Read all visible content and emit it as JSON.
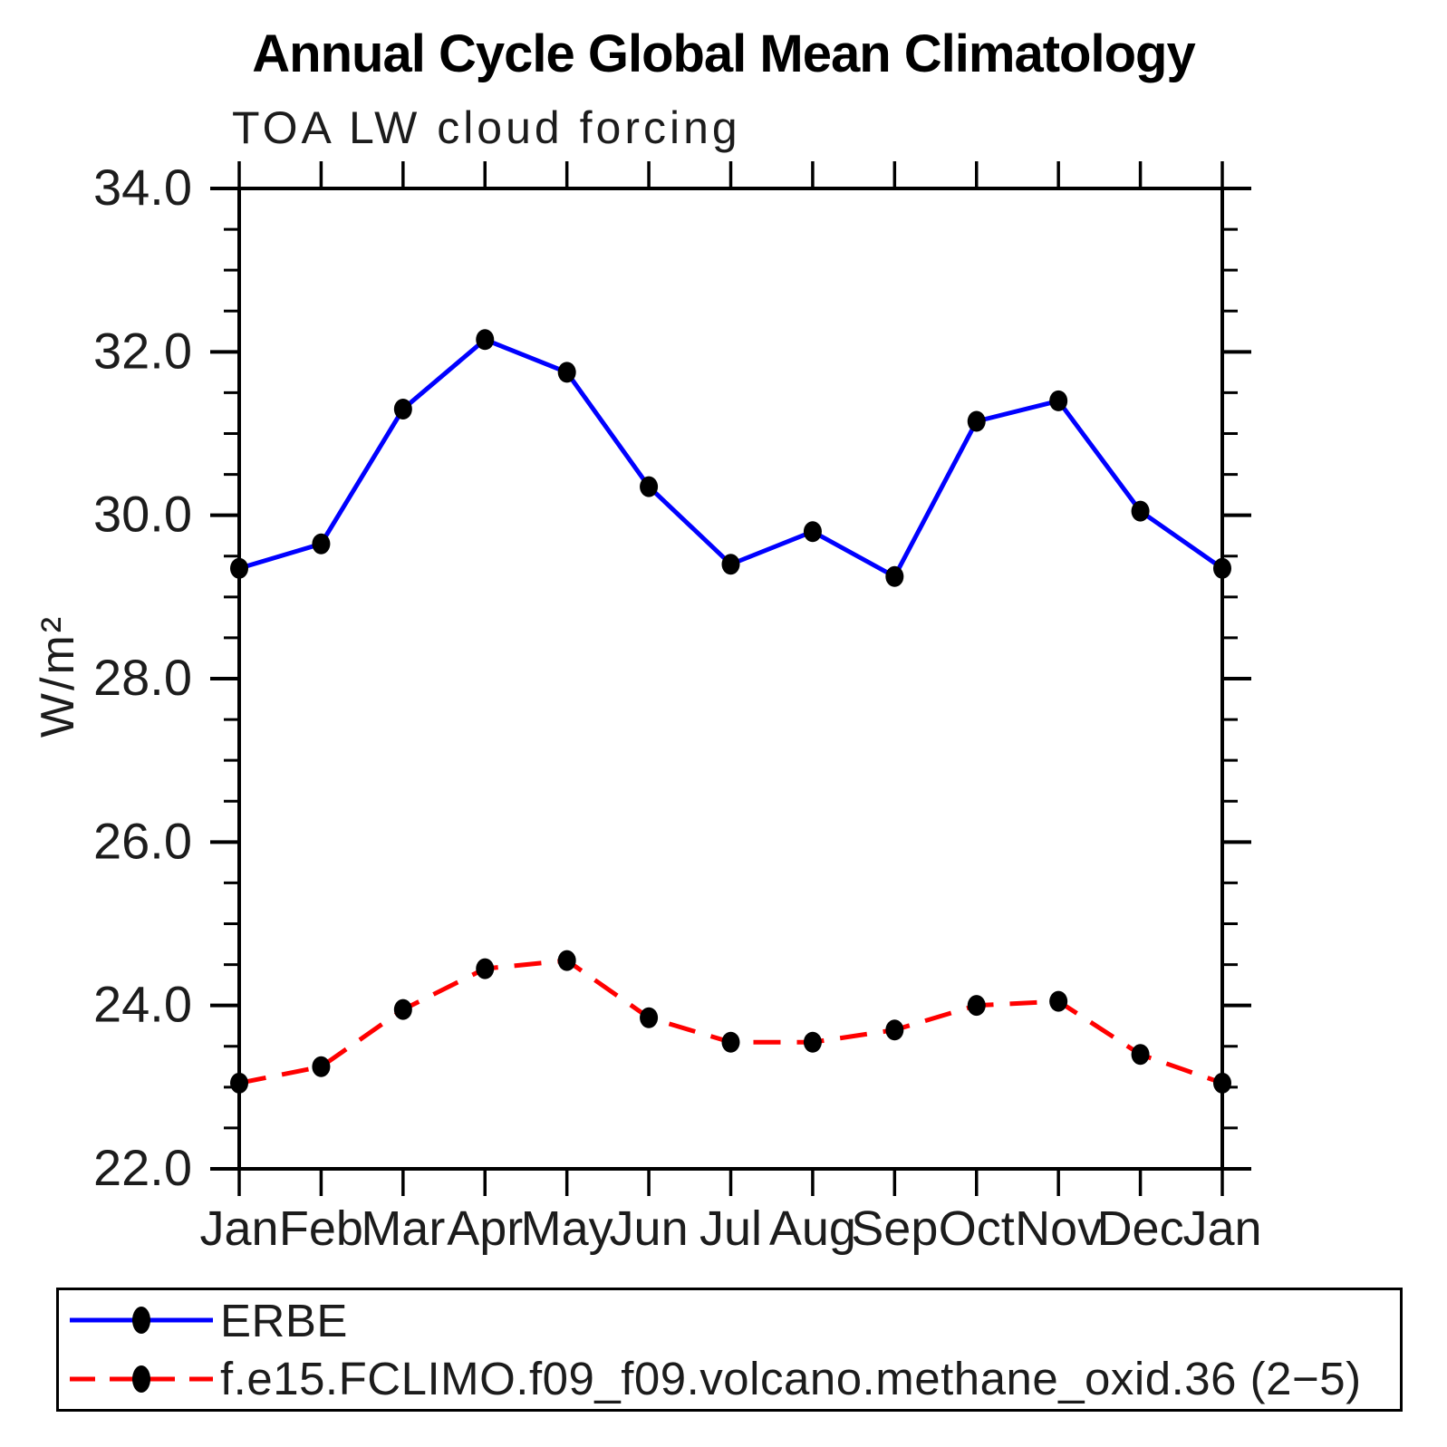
{
  "page": {
    "background": "#ffffff"
  },
  "chart_data": {
    "type": "line",
    "title": "Annual Cycle Global Mean Climatology",
    "subtitle": "TOA LW cloud forcing",
    "ylabel": "W/m²",
    "xlabel": "",
    "categories": [
      "Jan",
      "Feb",
      "Mar",
      "Apr",
      "May",
      "Jun",
      "Jul",
      "Aug",
      "Sep",
      "Oct",
      "Nov",
      "Dec",
      "Jan"
    ],
    "ylim": [
      22.0,
      34.0
    ],
    "ytick_values": [
      34,
      32,
      30,
      28,
      26,
      24,
      22
    ],
    "ytick_labels": [
      "34.0",
      "32.0",
      "30.0",
      "28.0",
      "26.0",
      "24.0",
      "22.0"
    ],
    "minor_tick_step": 0.5,
    "grid": false,
    "legend_position": "bottom",
    "axis_color": "#000000",
    "marker_color": "#000000",
    "series": [
      {
        "name": "ERBE",
        "color": "#0000ff",
        "style": "solid",
        "values": [
          29.35,
          29.65,
          31.3,
          32.15,
          31.75,
          30.35,
          29.4,
          29.8,
          29.25,
          31.15,
          31.4,
          30.05,
          29.35
        ]
      },
      {
        "name": "f.e15.FCLIMO.f09_f09.volcano.methane_oxid.36 (2−5)",
        "color": "#ff0000",
        "style": "dashed",
        "values": [
          23.05,
          23.25,
          23.95,
          24.45,
          24.55,
          23.85,
          23.55,
          23.55,
          23.7,
          24.0,
          24.05,
          23.4,
          23.05
        ]
      }
    ]
  }
}
